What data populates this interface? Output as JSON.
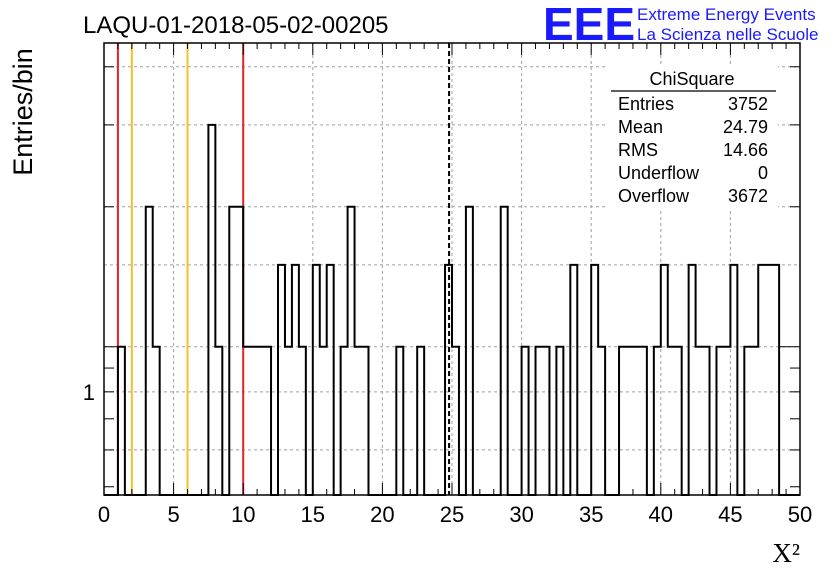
{
  "title": "LAQU-01-2018-05-02-00205",
  "logo": {
    "mark": "EEE",
    "line1": "Extreme Energy Events",
    "line2": "La Scienza nelle Scuole",
    "color": "#1a1aff"
  },
  "stats_box": {
    "name": "ChiSquare",
    "rows": [
      {
        "label": "Entries",
        "value": "3752"
      },
      {
        "label": "Mean",
        "value": "24.79"
      },
      {
        "label": "RMS",
        "value": "14.66"
      },
      {
        "label": "Underflow",
        "value": "0"
      },
      {
        "label": "Overflow",
        "value": "3672"
      }
    ]
  },
  "chart_data": {
    "type": "histogram",
    "xlabel": "X²",
    "ylabel": "Entries/bin",
    "xlim": [
      0,
      50
    ],
    "ylim": [
      0.48,
      4.5
    ],
    "y_scale": "log",
    "grid": true,
    "bin_width": 0.5,
    "x_ticks": [
      "0",
      "5",
      "10",
      "15",
      "20",
      "25",
      "30",
      "35",
      "40",
      "45",
      "50"
    ],
    "y_tick_labels": [
      "1"
    ],
    "bins": [
      {
        "x": 1.0,
        "y": 1
      },
      {
        "x": 3.0,
        "y": 2
      },
      {
        "x": 3.5,
        "y": 1
      },
      {
        "x": 7.5,
        "y": 3
      },
      {
        "x": 8.0,
        "y": 1
      },
      {
        "x": 9.0,
        "y": 2
      },
      {
        "x": 9.5,
        "y": 2
      },
      {
        "x": 10.0,
        "y": 1
      },
      {
        "x": 10.5,
        "y": 1
      },
      {
        "x": 11.0,
        "y": 1
      },
      {
        "x": 11.5,
        "y": 1
      },
      {
        "x": 12.5,
        "y": 1.5
      },
      {
        "x": 13.0,
        "y": 1
      },
      {
        "x": 13.5,
        "y": 1.5
      },
      {
        "x": 14.0,
        "y": 1
      },
      {
        "x": 15.0,
        "y": 1.5
      },
      {
        "x": 15.5,
        "y": 1
      },
      {
        "x": 16.0,
        "y": 1.5
      },
      {
        "x": 17.0,
        "y": 1
      },
      {
        "x": 17.5,
        "y": 2
      },
      {
        "x": 18.0,
        "y": 1
      },
      {
        "x": 18.5,
        "y": 1
      },
      {
        "x": 21.0,
        "y": 1
      },
      {
        "x": 22.5,
        "y": 1
      },
      {
        "x": 24.5,
        "y": 1.5
      },
      {
        "x": 25.0,
        "y": 1
      },
      {
        "x": 26.0,
        "y": 2
      },
      {
        "x": 28.5,
        "y": 2
      },
      {
        "x": 30.0,
        "y": 1
      },
      {
        "x": 31.0,
        "y": 1
      },
      {
        "x": 31.5,
        "y": 1
      },
      {
        "x": 32.5,
        "y": 1
      },
      {
        "x": 33.5,
        "y": 1.5
      },
      {
        "x": 35.0,
        "y": 1.5
      },
      {
        "x": 35.5,
        "y": 1
      },
      {
        "x": 37.0,
        "y": 1
      },
      {
        "x": 37.5,
        "y": 1
      },
      {
        "x": 38.0,
        "y": 1
      },
      {
        "x": 38.5,
        "y": 1
      },
      {
        "x": 39.5,
        "y": 1
      },
      {
        "x": 40.0,
        "y": 1.5
      },
      {
        "x": 40.5,
        "y": 1
      },
      {
        "x": 41.0,
        "y": 1
      },
      {
        "x": 42.0,
        "y": 1.5
      },
      {
        "x": 42.5,
        "y": 1
      },
      {
        "x": 43.0,
        "y": 1
      },
      {
        "x": 44.0,
        "y": 1
      },
      {
        "x": 44.5,
        "y": 1
      },
      {
        "x": 45.0,
        "y": 1.5
      },
      {
        "x": 46.0,
        "y": 1
      },
      {
        "x": 46.5,
        "y": 1
      },
      {
        "x": 47.0,
        "y": 1.5
      },
      {
        "x": 47.5,
        "y": 1.5
      },
      {
        "x": 48.0,
        "y": 1.5
      }
    ],
    "markers": [
      {
        "x": 1,
        "color": "#e8202a",
        "style": "solid"
      },
      {
        "x": 2,
        "color": "#f2c22a",
        "style": "solid"
      },
      {
        "x": 6,
        "color": "#f2c22a",
        "style": "solid"
      },
      {
        "x": 10,
        "color": "#e8202a",
        "style": "solid"
      },
      {
        "x": 24.79,
        "color": "#000000",
        "style": "dashed"
      }
    ]
  }
}
